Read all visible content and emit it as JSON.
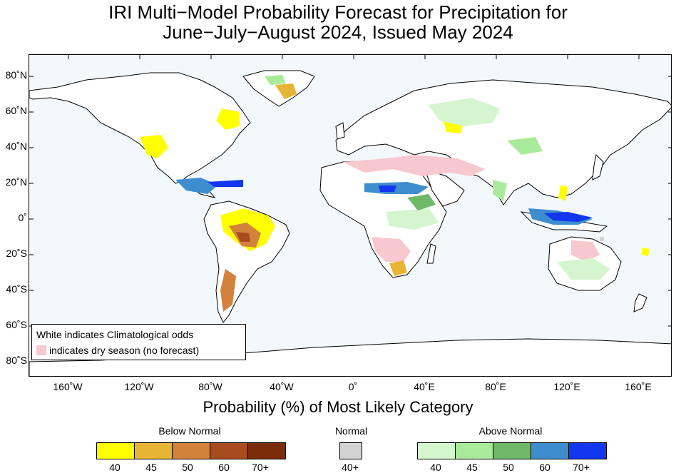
{
  "title": {
    "line1": "IRI Multi−Model Probability Forecast for Precipitation for",
    "line2": "June−July−August 2024, Issued May 2024"
  },
  "map": {
    "ocean_color": "#f2f8fc",
    "land_color": "#ffffff",
    "lat_labels": [
      "80˚N",
      "60˚N",
      "40˚N",
      "20˚N",
      "0˚",
      "20˚S",
      "40˚S",
      "60˚S",
      "80˚S"
    ],
    "lon_labels": [
      "160˚W",
      "120˚W",
      "80˚W",
      "40˚W",
      "0˚",
      "40˚E",
      "80˚E",
      "120˚E",
      "160˚E"
    ]
  },
  "legend_box": {
    "line1": "White indicates Climatological odds",
    "line2": "indicates dry season (no forecast)",
    "dry_season_color": "#f7c9cf"
  },
  "colorbar": {
    "title": "Probability (%) of Most Likely Category",
    "below_normal": {
      "label": "Below Normal",
      "levels": [
        "40",
        "45",
        "50",
        "60",
        "70+"
      ],
      "colors": [
        "#ffff00",
        "#e8b434",
        "#d2823b",
        "#a84b1f",
        "#7a2d08"
      ]
    },
    "normal": {
      "label": "Normal",
      "levels": [
        "40+"
      ],
      "colors": [
        "#d3d3d3"
      ]
    },
    "above_normal": {
      "label": "Above Normal",
      "levels": [
        "40",
        "45",
        "50",
        "60",
        "70+"
      ],
      "colors": [
        "#d5f5cf",
        "#aaeb9b",
        "#6fb86a",
        "#3e8ecf",
        "#1336f0"
      ]
    }
  }
}
